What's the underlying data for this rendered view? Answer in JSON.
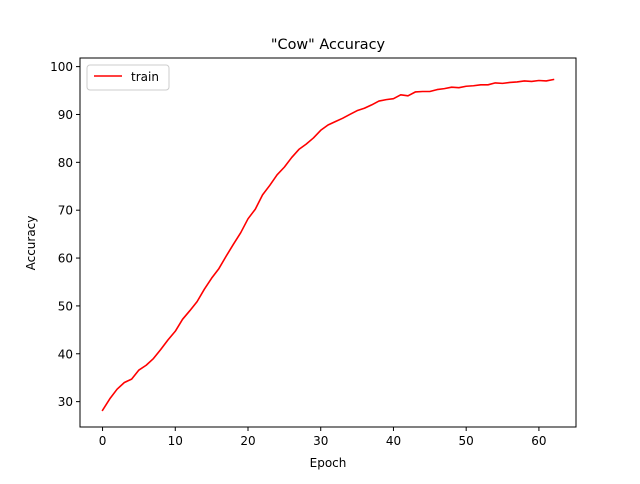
{
  "chart_data": {
    "type": "line",
    "title": "\"Cow\" Accuracy",
    "xlabel": "Epoch",
    "ylabel": "Accuracy",
    "xlim": [
      -3.1,
      65.1
    ],
    "ylim": [
      24.7,
      101.8
    ],
    "xticks": [
      0,
      10,
      20,
      30,
      40,
      50,
      60
    ],
    "yticks": [
      30,
      40,
      50,
      60,
      70,
      80,
      90,
      100
    ],
    "grid": false,
    "legend": {
      "position": "top-left"
    },
    "series": [
      {
        "name": "train",
        "color": "#ff0000",
        "x": [
          0,
          1,
          2,
          3,
          4,
          5,
          6,
          7,
          8,
          9,
          10,
          11,
          12,
          13,
          14,
          15,
          16,
          17,
          18,
          19,
          20,
          21,
          22,
          23,
          24,
          25,
          26,
          27,
          28,
          29,
          30,
          31,
          32,
          33,
          34,
          35,
          36,
          37,
          38,
          39,
          40,
          41,
          42,
          43,
          44,
          45,
          46,
          47,
          48,
          49,
          50,
          51,
          52,
          53,
          54,
          55,
          56,
          57,
          58,
          59,
          60,
          61,
          62
        ],
        "values": [
          28.2,
          30.6,
          32.6,
          34.0,
          34.7,
          36.6,
          37.6,
          39.0,
          40.9,
          42.9,
          44.7,
          47.2,
          49.0,
          50.9,
          53.5,
          55.8,
          57.8,
          60.4,
          62.9,
          65.3,
          68.2,
          70.2,
          73.2,
          75.2,
          77.4,
          79.0,
          81.0,
          82.7,
          83.8,
          85.1,
          86.7,
          87.8,
          88.5,
          89.2,
          90.0,
          90.8,
          91.3,
          92.0,
          92.8,
          93.1,
          93.3,
          94.1,
          93.9,
          94.7,
          94.8,
          94.8,
          95.2,
          95.4,
          95.7,
          95.6,
          95.9,
          96.0,
          96.2,
          96.2,
          96.6,
          96.5,
          96.7,
          96.8,
          97.0,
          96.9,
          97.1,
          97.0,
          97.3
        ]
      }
    ]
  }
}
